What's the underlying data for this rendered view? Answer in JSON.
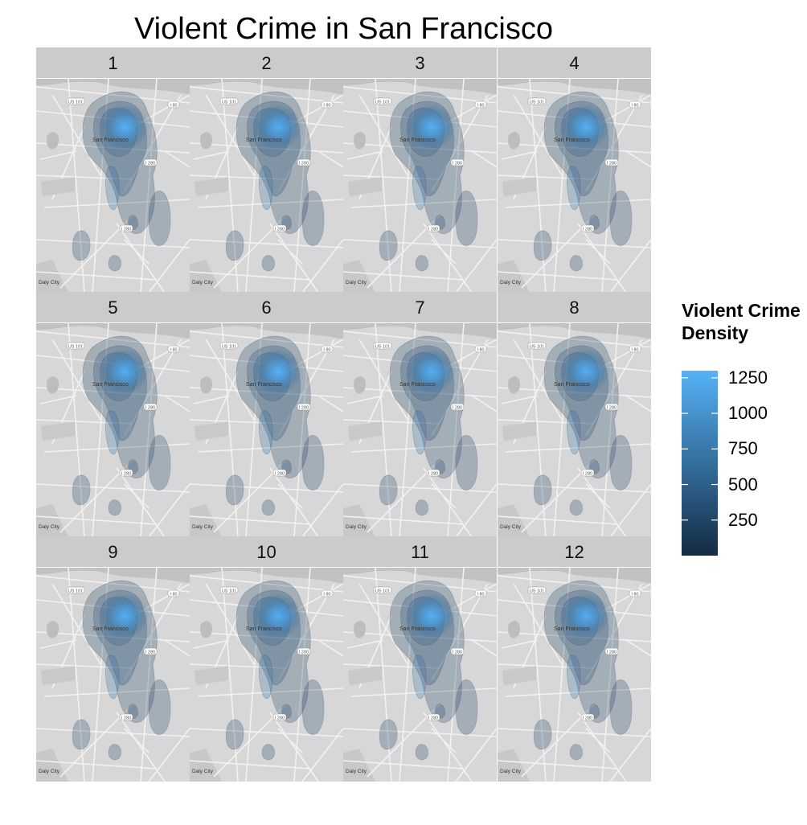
{
  "chart_data": {
    "type": "heatmap",
    "title": "Violent Crime in San Francisco",
    "facets": [
      "1",
      "2",
      "3",
      "4",
      "5",
      "6",
      "7",
      "8",
      "9",
      "10",
      "11",
      "12"
    ],
    "facet_layout": {
      "columns": 4,
      "rows": 3
    },
    "map_labels": [
      "US 101",
      "I 80",
      "San Francisco",
      "I 280",
      "Daly City"
    ],
    "legend": {
      "title": "Violent Crime Density",
      "breaks": [
        250,
        500,
        750,
        1000,
        1250
      ],
      "range": [
        0,
        1300
      ],
      "colors": {
        "low": "#132b43",
        "high": "#56b1f7"
      }
    },
    "peak_density_by_facet": [
      1300,
      1270,
      1300,
      1290,
      1270,
      1300,
      1290,
      1270,
      1280,
      1270,
      1300,
      1260
    ]
  }
}
